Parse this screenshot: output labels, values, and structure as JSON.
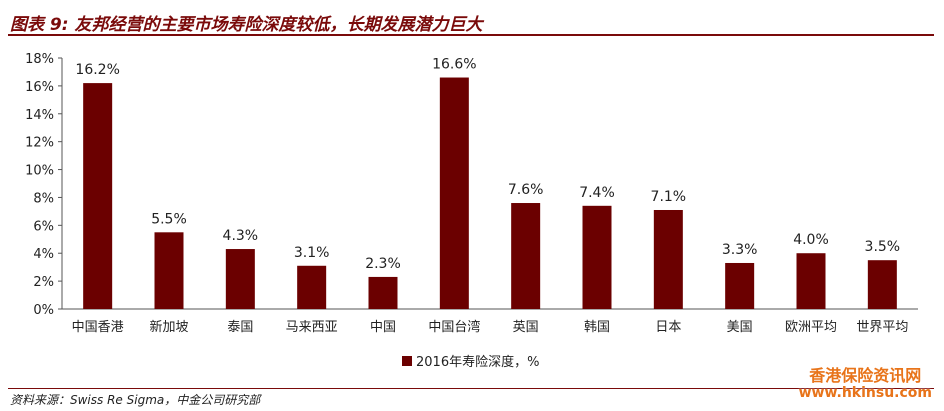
{
  "title": "图表 9: 友邦经营的主要市场寿险深度较低，长期发展潜力巨大",
  "source": "资料来源：Swiss Re Sigma，中金公司研究部",
  "watermark": {
    "line1": "香港保险资讯网",
    "line2": "www.hkinsu.com"
  },
  "colors": {
    "bar": "#6b0000",
    "accent": "#7a0a0a",
    "watermark": "#e8741a"
  },
  "chart_data": {
    "type": "bar",
    "categories": [
      "中国香港",
      "新加坡",
      "泰国",
      "马来西亚",
      "中国",
      "中国台湾",
      "英国",
      "韩国",
      "日本",
      "美国",
      "欧洲平均",
      "世界平均"
    ],
    "series": [
      {
        "name": "2016年寿险深度，%",
        "values": [
          16.2,
          5.5,
          4.3,
          3.1,
          2.3,
          16.6,
          7.6,
          7.4,
          7.1,
          3.3,
          4.0,
          3.5
        ]
      }
    ],
    "data_labels": [
      "16.2%",
      "5.5%",
      "4.3%",
      "3.1%",
      "2.3%",
      "16.6%",
      "7.6%",
      "7.4%",
      "7.1%",
      "3.3%",
      "4.0%",
      "3.5%"
    ],
    "yticks": [
      "0%",
      "2%",
      "4%",
      "6%",
      "8%",
      "10%",
      "12%",
      "14%",
      "16%",
      "18%"
    ],
    "ylim": [
      0,
      18
    ],
    "ystep": 2,
    "legend_position": "bottom",
    "grid": false
  }
}
